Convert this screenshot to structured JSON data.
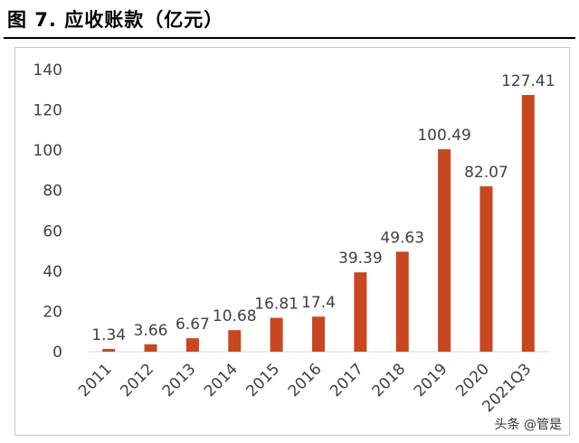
{
  "title": "图 7. 应收账款（亿元）",
  "watermark": "头条 @管是",
  "colors": {
    "bar": "#c9471e",
    "axis": "#d9d9d9",
    "text": "#404040"
  },
  "chart_data": {
    "type": "bar",
    "title": "",
    "xlabel": "",
    "ylabel": "",
    "categories": [
      "2011",
      "2012",
      "2013",
      "2014",
      "2015",
      "2016",
      "2017",
      "2018",
      "2019",
      "2020",
      "2021Q3"
    ],
    "values": [
      1.34,
      3.66,
      6.67,
      10.68,
      16.81,
      17.4,
      39.39,
      49.63,
      100.49,
      82.07,
      127.41
    ],
    "data_labels": [
      "1.34",
      "3.66",
      "6.67",
      "10.68",
      "16.81",
      "17.4",
      "39.39",
      "49.63",
      "100.49",
      "82.07",
      "127.41"
    ],
    "ylim": [
      0,
      140
    ],
    "yticks": [
      0,
      20,
      40,
      60,
      80,
      100,
      120,
      140
    ],
    "grid": false,
    "legend": "none"
  }
}
